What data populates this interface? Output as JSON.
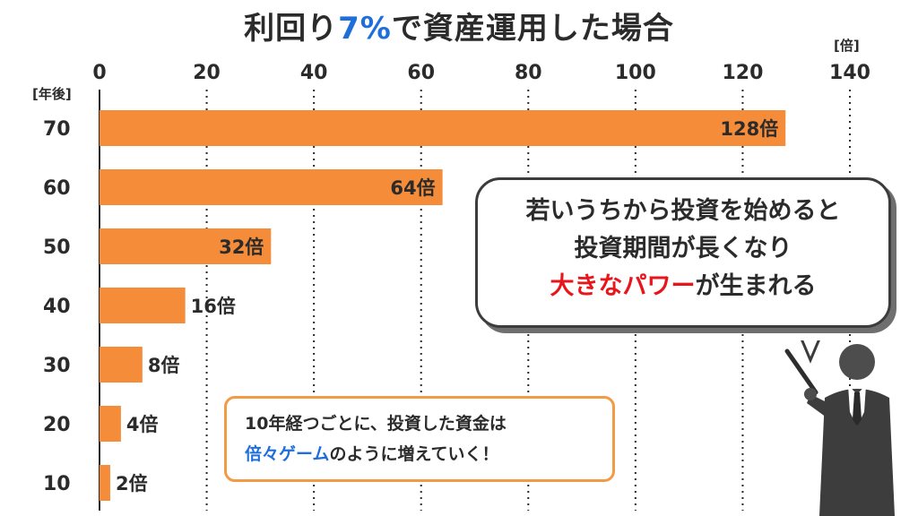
{
  "title": {
    "pre": "利回り",
    "highlight": "7%",
    "post": "で資産運用した場合"
  },
  "units": {
    "x": "[倍]",
    "y": "[年後]"
  },
  "colors": {
    "bar": "#f58c3a",
    "accent_blue": "#1f6fdb",
    "accent_red": "#e8151b",
    "note_border": "#f39a45"
  },
  "chart_data": {
    "type": "bar",
    "orientation": "horizontal",
    "categories": [
      "70",
      "60",
      "50",
      "40",
      "30",
      "20",
      "10"
    ],
    "values": [
      128,
      64,
      32,
      16,
      8,
      4,
      2
    ],
    "value_labels": [
      "128倍",
      "64倍",
      "32倍",
      "16倍",
      "8倍",
      "4倍",
      "2倍"
    ],
    "xlim": [
      0,
      140
    ],
    "x_ticks": [
      "0",
      "20",
      "40",
      "60",
      "80",
      "100",
      "120",
      "140"
    ],
    "grid": "vertical dotted",
    "xlabel": "[倍]",
    "ylabel": "[年後]"
  },
  "bubble": {
    "line1": "若いうちから投資を始めると",
    "line2": "投資期間が長くなり",
    "line3_red": "大きなパワー",
    "line3_rest": "が生まれる"
  },
  "note": {
    "line1": "10年経つごとに、投資した資金は",
    "line2_blue": "倍々ゲーム",
    "line2_rest": "のように増えていく！"
  },
  "figure": {
    "icon": "presenter-pointer-icon"
  }
}
